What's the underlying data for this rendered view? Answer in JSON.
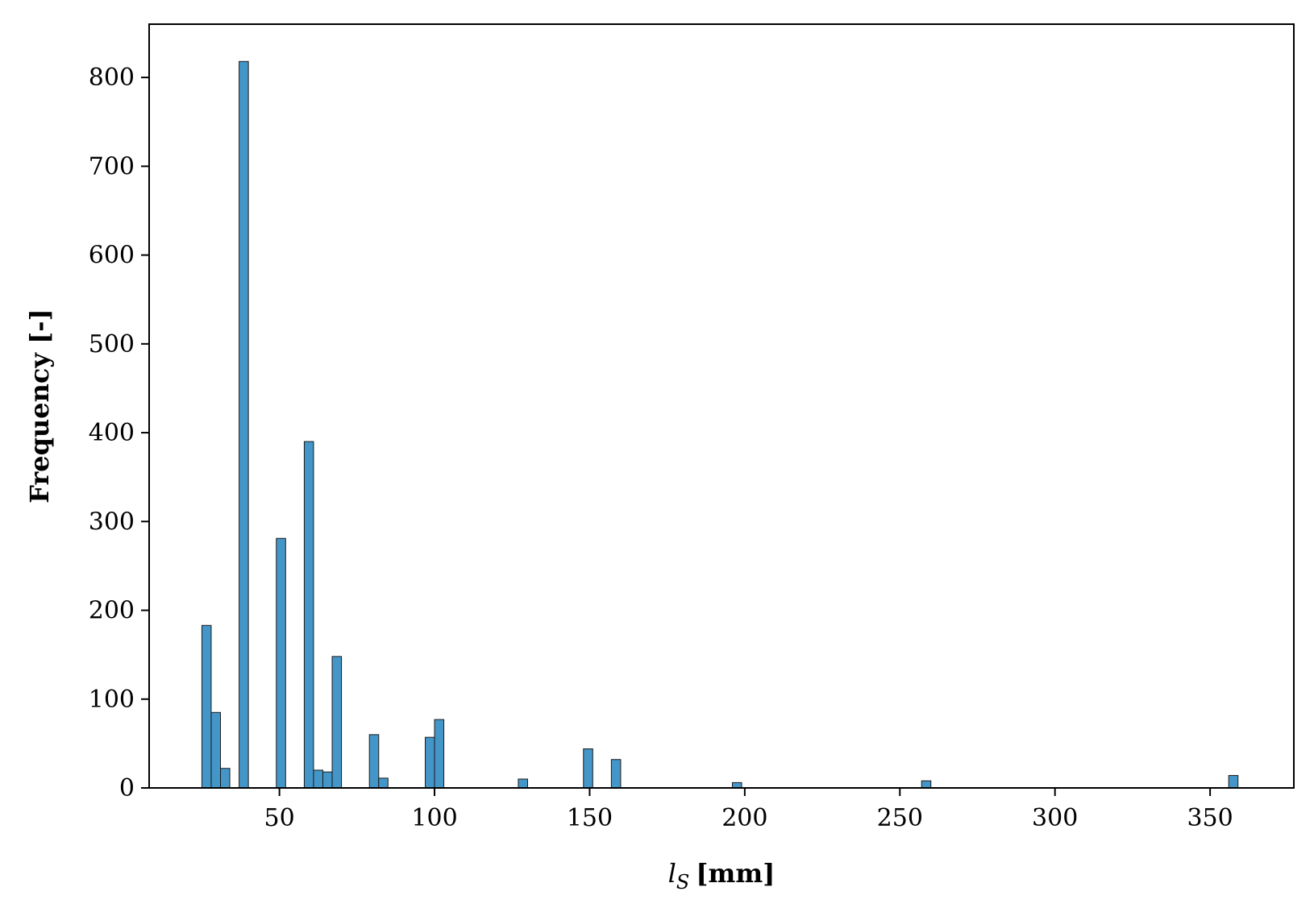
{
  "chart_data": {
    "type": "bar",
    "title": "",
    "xlabel_symbol": "l",
    "xlabel_subscript": "S",
    "xlabel_unit": "[mm]",
    "ylabel": "Frequency [-]",
    "xlim": [
      8,
      377
    ],
    "ylim": [
      0,
      860
    ],
    "xticks": [
      50,
      100,
      150,
      200,
      250,
      300,
      350
    ],
    "yticks": [
      0,
      100,
      200,
      300,
      400,
      500,
      600,
      700,
      800
    ],
    "grid": false,
    "bar_color": "#4396c7",
    "bin_width": 3,
    "bins": [
      {
        "x": 25,
        "value": 183
      },
      {
        "x": 28,
        "value": 85
      },
      {
        "x": 31,
        "value": 22
      },
      {
        "x": 37,
        "value": 818
      },
      {
        "x": 49,
        "value": 281
      },
      {
        "x": 58,
        "value": 390
      },
      {
        "x": 61,
        "value": 20
      },
      {
        "x": 64,
        "value": 18
      },
      {
        "x": 67,
        "value": 148
      },
      {
        "x": 79,
        "value": 60
      },
      {
        "x": 82,
        "value": 11
      },
      {
        "x": 97,
        "value": 57
      },
      {
        "x": 100,
        "value": 77
      },
      {
        "x": 127,
        "value": 10
      },
      {
        "x": 148,
        "value": 44
      },
      {
        "x": 157,
        "value": 32
      },
      {
        "x": 196,
        "value": 6
      },
      {
        "x": 257,
        "value": 8
      },
      {
        "x": 356,
        "value": 14
      }
    ]
  }
}
